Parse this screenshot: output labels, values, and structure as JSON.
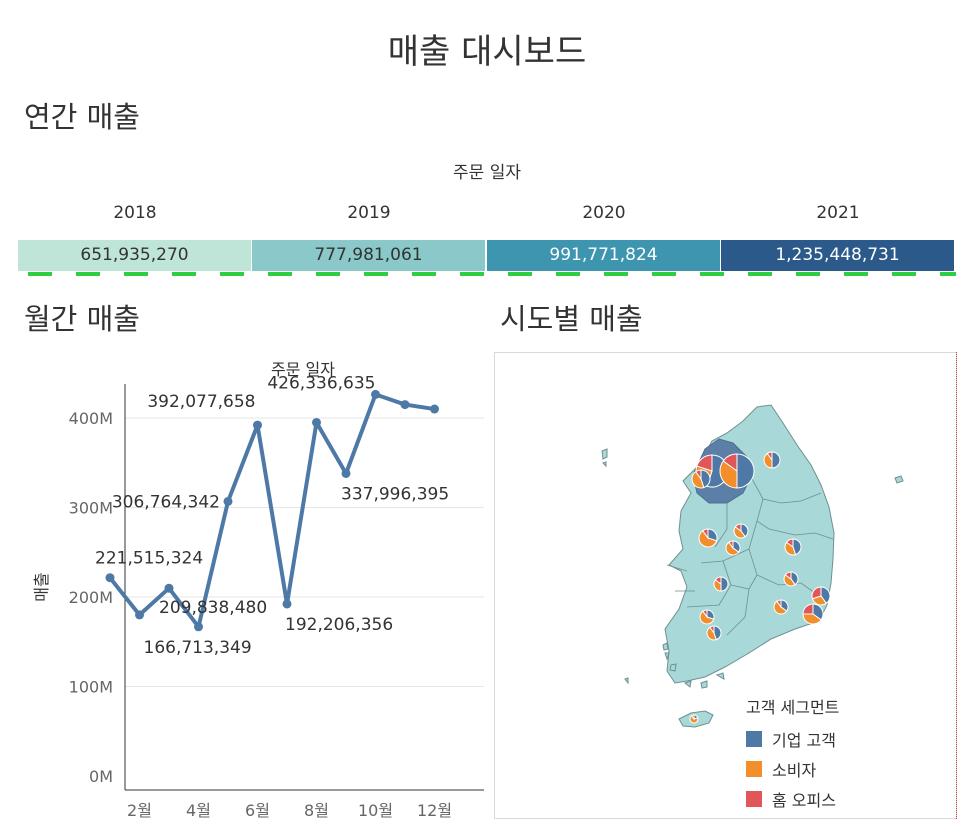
{
  "page": {
    "title": "매출 대시보드"
  },
  "annual": {
    "section_title": "연간 매출",
    "header": "주문 일자",
    "years": [
      {
        "year": "2018",
        "value": "651,935,270",
        "color": "#bfe5d8",
        "text_color": "#333333"
      },
      {
        "year": "2019",
        "value": "777,981,061",
        "color": "#8ac8c9",
        "text_color": "#333333"
      },
      {
        "year": "2020",
        "value": "991,771,824",
        "color": "#3d95b0",
        "text_color": "#ffffff"
      },
      {
        "year": "2021",
        "value": "1,235,448,731",
        "color": "#2b5a8a",
        "text_color": "#ffffff"
      }
    ]
  },
  "monthly": {
    "section_title": "월간 매출"
  },
  "region": {
    "section_title": "시도별 매출",
    "legend_title": "고객 세그먼트",
    "legend": [
      {
        "label": "기업 고객",
        "color": "#4e79a7"
      },
      {
        "label": "소비자",
        "color": "#f28e2b"
      },
      {
        "label": "홈 오피스",
        "color": "#e15759"
      }
    ]
  },
  "chart_data": {
    "type": "line",
    "title": "주문 일자",
    "ylabel": "매출",
    "xlabel": "",
    "x": [
      1,
      2,
      3,
      4,
      5,
      6,
      7,
      8,
      9,
      10,
      11,
      12
    ],
    "x_tick_labels": [
      "2월",
      "4월",
      "6월",
      "8월",
      "10월",
      "12월"
    ],
    "x_tick_values": [
      2,
      4,
      6,
      8,
      10,
      12
    ],
    "y_ticks": [
      0,
      100000000,
      200000000,
      300000000,
      400000000
    ],
    "y_tick_labels": [
      "0M",
      "100M",
      "200M",
      "300M",
      "400M"
    ],
    "ylim": [
      0,
      450000000
    ],
    "grid": true,
    "color": "#4e79a7",
    "series": [
      {
        "values": [
          221515324,
          180000000,
          209838480,
          166713349,
          306764342,
          392077658,
          192206356,
          395000000,
          337996395,
          426336635,
          415000000,
          410000000
        ]
      }
    ],
    "data_labels": [
      {
        "index": 0,
        "text": "221,515,324",
        "pos": "above"
      },
      {
        "index": 2,
        "text": "209,838,480",
        "pos": "below"
      },
      {
        "index": 3,
        "text": "166,713,349",
        "pos": "below"
      },
      {
        "index": 4,
        "text": "306,764,342",
        "pos": "left"
      },
      {
        "index": 5,
        "text": "392,077,658",
        "pos": "left-above"
      },
      {
        "index": 6,
        "text": "192,206,356",
        "pos": "below"
      },
      {
        "index": 8,
        "text": "337,996,395",
        "pos": "below"
      },
      {
        "index": 9,
        "text": "426,336,635",
        "pos": "above-left"
      }
    ]
  }
}
